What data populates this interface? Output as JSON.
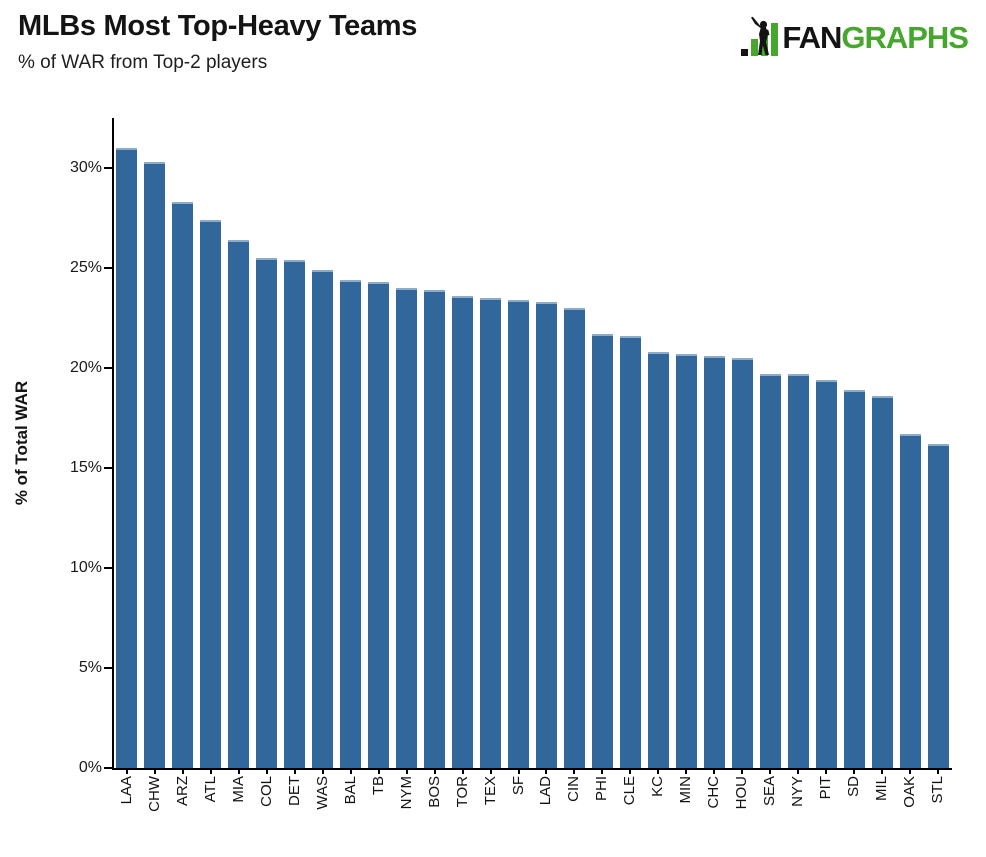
{
  "header": {
    "title": "MLBs Most Top-Heavy Teams",
    "subtitle": "% of WAR from Top-2 players"
  },
  "logo": {
    "fan": "FAN",
    "graphs": "GRAPHS",
    "green": "#46a62e",
    "black": "#141414"
  },
  "chart_data": {
    "type": "bar",
    "title": "MLBs Most Top-Heavy Teams",
    "subtitle": "% of WAR from Top-2 players",
    "xlabel": "",
    "ylabel": "% of Total WAR",
    "categories": [
      "LAA",
      "CHW",
      "ARZ",
      "ATL",
      "MIA",
      "COL",
      "DET",
      "WAS",
      "BAL",
      "TB",
      "NYM",
      "BOS",
      "TOR",
      "TEX",
      "SF",
      "LAD",
      "CIN",
      "PHI",
      "CLE",
      "KC",
      "MIN",
      "CHC",
      "HOU",
      "SEA",
      "NYY",
      "PIT",
      "SD",
      "MIL",
      "OAK",
      "STL"
    ],
    "values": [
      31.0,
      30.3,
      28.3,
      27.4,
      26.4,
      25.5,
      25.4,
      24.9,
      24.4,
      24.3,
      24.0,
      23.9,
      23.6,
      23.5,
      23.4,
      23.3,
      23.0,
      21.7,
      21.6,
      20.8,
      20.7,
      20.6,
      20.5,
      19.7,
      19.7,
      19.4,
      18.9,
      18.6,
      16.7,
      16.2
    ],
    "ylim": [
      0,
      32.5
    ],
    "yticks": [
      0,
      5,
      10,
      15,
      20,
      25,
      30
    ],
    "ytick_suffix": "%",
    "bar_color": "#31679b",
    "bar_edge_color": "#8aacca",
    "axis_color": "#000000",
    "grid": false,
    "legend": "none",
    "sort": "descending"
  }
}
